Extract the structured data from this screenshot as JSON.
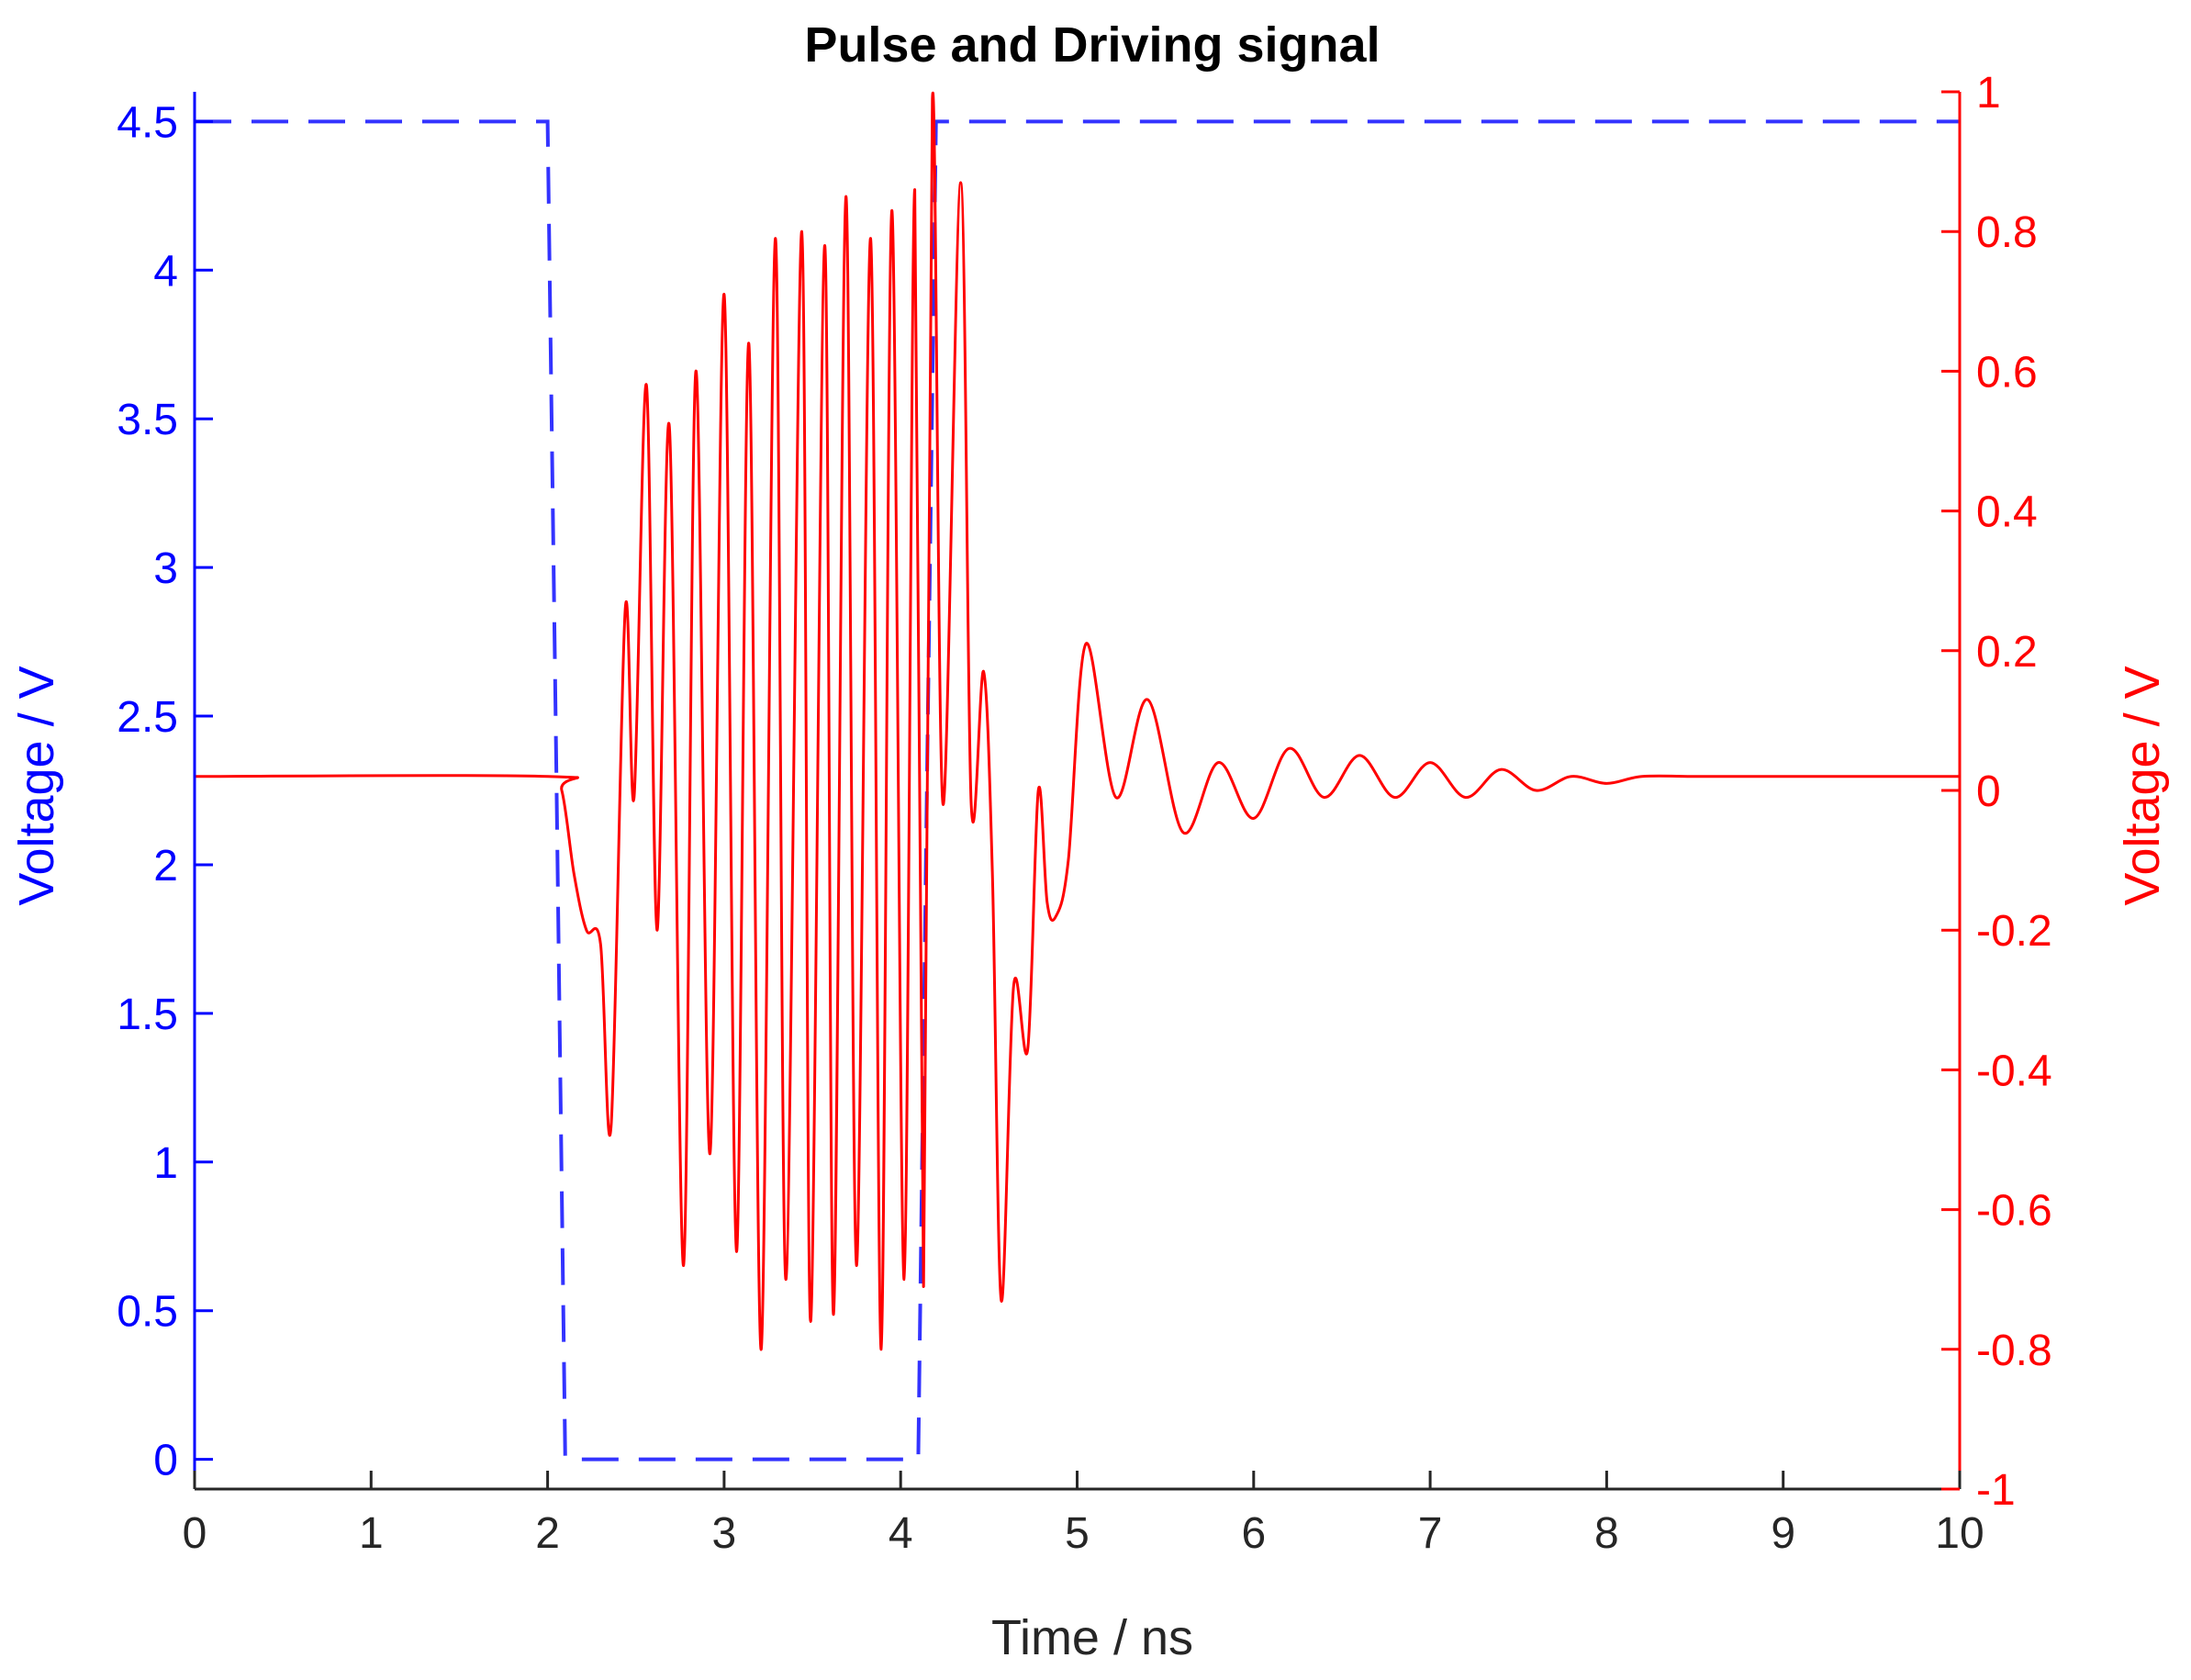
{
  "chart_data": {
    "type": "line",
    "title": "Pulse and Driving signal",
    "xlabel": "Time / ns",
    "ylabel_left": "Voltage / V",
    "ylabel_right": "Voltage / V",
    "xlim": [
      0,
      10
    ],
    "ylim_left": [
      -0.1,
      4.6
    ],
    "ylim_right": [
      -1,
      1
    ],
    "xticks": [
      "0",
      "1",
      "2",
      "3",
      "4",
      "5",
      "6",
      "7",
      "8",
      "9",
      "10"
    ],
    "yticks_left": [
      "0",
      "0.5",
      "1",
      "1.5",
      "2",
      "2.5",
      "3",
      "3.5",
      "4",
      "4.5"
    ],
    "yticks_right": [
      "-1",
      "-0.8",
      "-0.6",
      "-0.4",
      "-0.2",
      "0",
      "0.2",
      "0.4",
      "0.6",
      "0.8",
      "1"
    ],
    "grid": false,
    "colors": {
      "left_axis": "#0000ff",
      "right_axis": "#ff0000",
      "pulse": "#3333ff",
      "driving": "#ff0000"
    },
    "series": [
      {
        "axis": "left",
        "style": "dashed",
        "x": [
          0,
          2.0,
          2.05,
          2.1,
          4.1,
          4.15,
          4.2,
          10
        ],
        "y": [
          4.5,
          4.5,
          2.3,
          0,
          0,
          2.3,
          4.5,
          4.5
        ]
      },
      {
        "axis": "right",
        "style": "solid",
        "x": [
          0,
          2.0,
          2.08,
          2.15,
          2.22,
          2.3,
          2.36,
          2.44,
          2.49,
          2.56,
          2.62,
          2.69,
          2.77,
          2.84,
          2.92,
          3.0,
          3.07,
          3.14,
          3.21,
          3.29,
          3.35,
          3.44,
          3.49,
          3.57,
          3.62,
          3.69,
          3.75,
          3.83,
          3.89,
          3.95,
          4.02,
          4.08,
          4.13,
          4.18,
          4.24,
          4.34,
          4.4,
          4.47,
          4.52,
          4.57,
          4.64,
          4.72,
          4.78,
          4.83,
          4.88,
          4.95,
          5.05,
          5.22,
          5.4,
          5.6,
          5.8,
          6.0,
          6.2,
          6.4,
          6.6,
          6.8,
          7.0,
          7.2,
          7.4,
          7.6,
          7.8,
          8.0,
          8.2,
          8.5,
          8.8,
          10
        ],
        "y": [
          0.02,
          0.02,
          0.0,
          -0.12,
          -0.2,
          -0.22,
          -0.48,
          0.26,
          -0.01,
          0.58,
          -0.2,
          0.52,
          -0.68,
          0.6,
          -0.52,
          0.71,
          -0.66,
          0.64,
          -0.8,
          0.79,
          -0.7,
          0.8,
          -0.76,
          0.78,
          -0.75,
          0.85,
          -0.68,
          0.79,
          -0.8,
          0.83,
          -0.7,
          0.86,
          -0.71,
          0.99,
          -0.02,
          0.87,
          -0.02,
          0.17,
          -0.12,
          -0.73,
          -0.28,
          -0.37,
          0.0,
          -0.16,
          -0.18,
          -0.1,
          0.21,
          -0.01,
          0.13,
          -0.06,
          0.04,
          -0.04,
          0.06,
          -0.01,
          0.05,
          -0.01,
          0.04,
          -0.01,
          0.03,
          0.0,
          0.02,
          0.01,
          0.02,
          0.02,
          0.02,
          0.02
        ]
      }
    ]
  }
}
